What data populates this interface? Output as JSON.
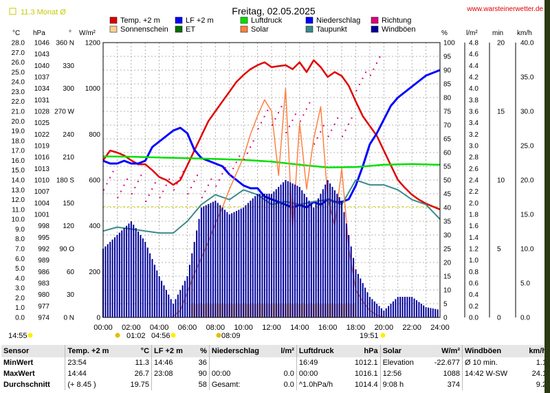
{
  "header": {
    "station": "11.3 Monat Ø",
    "date_title": "Freitag, 02.05.2025",
    "site": "www.warsteinerwetter.de"
  },
  "legend": [
    {
      "label": "Temp. +2 m",
      "color": "#e00000"
    },
    {
      "label": "LF +2 m",
      "color": "#0000ff"
    },
    {
      "label": "Luftdruck",
      "color": "#00e000"
    },
    {
      "label": "Niederschlag",
      "color": "#0000ff"
    },
    {
      "label": "Richtung",
      "color": "#e0007a"
    },
    {
      "label": "Sonnenschein",
      "color": "#f8d090"
    },
    {
      "label": "ET",
      "color": "#007000"
    },
    {
      "label": "Solar",
      "color": "#ff8040"
    },
    {
      "label": "Taupunkt",
      "color": "#3a8a8a"
    },
    {
      "label": "Windböen",
      "color": "#00009a"
    }
  ],
  "axes": {
    "left_units": [
      "°C",
      "hPa",
      "°",
      "W/m²"
    ],
    "right_units": [
      "%",
      "l/m²",
      "min",
      "km/h"
    ],
    "temp_ticks": [
      "28.0",
      "27.0",
      "26.0",
      "25.0",
      "24.0",
      "23.0",
      "22.0",
      "21.0",
      "20.0",
      "19.0",
      "18.0",
      "17.0",
      "16.0",
      "15.0",
      "14.0",
      "13.0",
      "12.0",
      "11.0",
      "10.0",
      "9.0",
      "8.0",
      "7.0",
      "6.0",
      "5.0",
      "4.0",
      "3.0",
      "2.0",
      "1.0",
      "0.0"
    ],
    "hpa_ticks": [
      "1046",
      "1043",
      "1040",
      "1037",
      "1034",
      "1031",
      "1028",
      "1025",
      "1022",
      "1019",
      "1016",
      "1013",
      "1010",
      "1007",
      "1004",
      "1001",
      "998",
      "995",
      "992",
      "989",
      "986",
      "983",
      "980",
      "977",
      "974"
    ],
    "dir_ticks": [
      "360 N",
      "330",
      "300",
      "270 W",
      "240",
      "210",
      "180 S",
      "150",
      "120",
      "90 O",
      "60",
      "30",
      "0 N"
    ],
    "solar_ticks": [
      "1200",
      "1000",
      "800",
      "600",
      "400",
      "200",
      "0"
    ],
    "pct_ticks": [
      "100",
      "95",
      "90",
      "85",
      "80",
      "75",
      "70",
      "65",
      "60",
      "55",
      "50",
      "45",
      "40",
      "35",
      "30",
      "25",
      "20",
      "15",
      "10",
      "5",
      "0"
    ],
    "rain_ticks": [
      "4.8",
      "4.6",
      "4.4",
      "4.2",
      "4.0",
      "3.8",
      "3.6",
      "3.4",
      "3.2",
      "3.0",
      "2.8",
      "2.6",
      "2.4",
      "2.2",
      "2.0",
      "1.8",
      "1.6",
      "1.4",
      "1.2",
      "1.0",
      "0.8",
      "0.6",
      "0.4",
      "0.2",
      "0.0"
    ],
    "min_ticks": [
      "20",
      "15",
      "10",
      "5",
      "0"
    ],
    "kmh_ticks": [
      "40.0",
      "35.0",
      "30.0",
      "25.0",
      "20.0",
      "15.0",
      "10.0",
      "5.0",
      "0.0"
    ],
    "x_ticks": [
      "00:00",
      "02:00",
      "04:00",
      "06:00",
      "08:00",
      "10:00",
      "12:00",
      "14:00",
      "16:00",
      "18:00",
      "20:00",
      "22:00",
      "24:00"
    ]
  },
  "markers": {
    "left_time": "14:55",
    "moonrise": "01:02",
    "sunrise": "04:56",
    "moonset": "08:09",
    "sunset": "19:51"
  },
  "chart_data": {
    "type": "line",
    "title": "Freitag, 02.05.2025",
    "x_unit": "hour",
    "x_range": [
      0,
      24
    ],
    "series": [
      {
        "name": "Temp. +2 m",
        "unit": "°C",
        "color": "#e00000",
        "x": [
          0,
          0.5,
          1,
          1.5,
          2,
          2.5,
          3,
          3.5,
          4,
          4.5,
          5,
          5.5,
          6,
          6.5,
          7,
          7.5,
          8,
          8.5,
          9,
          9.5,
          10,
          10.5,
          11,
          11.5,
          12,
          12.5,
          13,
          13.5,
          14,
          14.5,
          15,
          15.5,
          16,
          16.5,
          17,
          17.5,
          18,
          18.5,
          19,
          19.5,
          20,
          20.5,
          21,
          21.5,
          22,
          22.5,
          23,
          23.5,
          24
        ],
        "values": [
          16.0,
          17.0,
          16.8,
          16.5,
          16.0,
          15.6,
          15.6,
          15.0,
          14.3,
          14.0,
          13.5,
          14.0,
          15.5,
          17.0,
          18.5,
          20.0,
          21.0,
          22.0,
          23.0,
          24.0,
          24.7,
          25.3,
          25.7,
          26.0,
          25.5,
          25.6,
          25.7,
          25.3,
          26.0,
          25.0,
          26.2,
          25.5,
          24.5,
          25.0,
          24.6,
          23.6,
          22.0,
          20.5,
          19.5,
          18.5,
          17.0,
          15.5,
          14.0,
          13.2,
          12.5,
          12.0,
          11.6,
          11.3,
          11.0
        ]
      },
      {
        "name": "LF +2 m",
        "unit": "%",
        "color": "#0000ff",
        "x": [
          0,
          0.5,
          1,
          1.5,
          2,
          2.5,
          3,
          3.5,
          4,
          4.5,
          5,
          5.5,
          6,
          6.5,
          7,
          7.5,
          8,
          8.5,
          9,
          9.5,
          10,
          10.5,
          11,
          11.5,
          12,
          12.5,
          13,
          13.5,
          14,
          14.5,
          15,
          15.5,
          16,
          16.5,
          17,
          17.5,
          18,
          18.5,
          19,
          19.5,
          20,
          20.5,
          21,
          21.5,
          22,
          22.5,
          23,
          23.5,
          24
        ],
        "values": [
          57,
          56,
          56,
          57,
          56,
          56,
          57,
          62,
          64,
          66,
          68,
          69,
          67,
          61,
          58,
          57,
          56,
          55,
          52,
          50,
          48,
          47,
          47,
          44,
          43,
          42,
          41,
          40,
          41,
          40,
          42,
          41,
          43,
          42,
          42,
          43,
          48,
          55,
          63,
          67,
          72,
          77,
          80,
          82,
          84,
          86,
          88,
          89,
          90
        ]
      },
      {
        "name": "Luftdruck",
        "unit": "hPa",
        "color": "#00e000",
        "x": [
          0,
          2,
          4,
          6,
          8,
          10,
          12,
          14,
          16,
          18,
          20,
          22,
          24
        ],
        "values": [
          1016.2,
          1016.1,
          1015.9,
          1015.7,
          1015.5,
          1015.3,
          1014.8,
          1014.0,
          1013.3,
          1013.4,
          1014.0,
          1014.2,
          1014.0
        ]
      },
      {
        "name": "Taupunkt",
        "unit": "°C",
        "color": "#3a8a8a",
        "x": [
          0,
          1,
          2,
          3,
          4,
          5,
          6,
          7,
          8,
          9,
          10,
          11,
          12,
          13,
          14,
          15,
          16,
          17,
          18,
          19,
          20,
          21,
          22,
          23,
          24
        ],
        "values": [
          8.8,
          9.2,
          9.0,
          8.8,
          8.6,
          8.6,
          9.8,
          11.5,
          12.5,
          12.0,
          13.0,
          12.5,
          11.5,
          11.8,
          11.5,
          11.8,
          12.0,
          11.5,
          14.0,
          13.5,
          13.5,
          13.0,
          12.0,
          11.5,
          10.0
        ]
      },
      {
        "name": "Solar",
        "unit": "W/m²",
        "color": "#ff8040",
        "x": [
          4.9,
          5.5,
          6,
          6.5,
          7,
          7.5,
          8,
          8.5,
          9,
          9.5,
          10,
          10.5,
          11,
          11.5,
          12,
          12.5,
          13,
          13.5,
          14,
          14.5,
          15,
          15.5,
          16,
          16.5,
          17,
          17.5,
          18,
          18.5,
          19,
          19.5,
          20
        ],
        "values": [
          0,
          30,
          110,
          190,
          260,
          330,
          410,
          480,
          560,
          630,
          700,
          800,
          880,
          950,
          900,
          620,
          1000,
          380,
          850,
          560,
          780,
          920,
          520,
          400,
          650,
          300,
          120,
          70,
          30,
          10,
          0
        ]
      },
      {
        "name": "Windböen",
        "unit": "km/h",
        "color": "#00009a",
        "x": [
          0,
          1,
          2,
          3,
          4,
          5,
          6,
          7,
          8,
          9,
          10,
          11,
          12,
          13,
          14,
          15,
          16,
          17,
          18,
          19,
          20,
          21,
          22,
          23,
          24
        ],
        "values": [
          10.0,
          12.0,
          14.0,
          11.0,
          6.0,
          2.0,
          6.0,
          16.0,
          17.0,
          15.0,
          16.0,
          18.0,
          18.0,
          20.0,
          19.0,
          16.0,
          20.0,
          17.0,
          7.0,
          3.0,
          1.0,
          3.0,
          3.0,
          1.5,
          1.1
        ]
      },
      {
        "name": "Richtung",
        "unit": "°",
        "color": "#e0007a",
        "x": [
          0,
          1,
          2,
          3,
          4,
          5,
          6,
          7,
          8,
          9,
          10,
          11,
          12,
          13,
          14,
          15,
          16,
          17,
          18,
          19
        ],
        "values": [
          180,
          170,
          175,
          165,
          170,
          180,
          175,
          170,
          185,
          200,
          220,
          260,
          265,
          255,
          270,
          240,
          250,
          250,
          310,
          330
        ]
      }
    ],
    "ylim_temp": [
      0,
      28
    ],
    "ylim_pct": [
      0,
      100
    ],
    "ylim_hpa": [
      974,
      1046
    ],
    "ylim_solar": [
      0,
      1200
    ],
    "ylim_kmh": [
      0,
      40
    ],
    "grid": true,
    "legend_position": "top"
  },
  "stats": {
    "header": {
      "sensor": "Sensor",
      "temp": "Temp. +2 m",
      "temp_unit": "°C",
      "lf": "LF +2 m",
      "lf_unit": "%",
      "rain": "Niederschlag",
      "rain_unit": "l/m²",
      "press": "Luftdruck",
      "press_unit": "hPa",
      "solar": "Solar",
      "solar_unit": "W/m²",
      "wind": "Windböen",
      "wind_unit": "km/h"
    },
    "rows": [
      {
        "label": "MinWert",
        "temp_time": "23:54",
        "temp": "11.3",
        "lf_time": "14:46",
        "lf": "36",
        "rain_a": "",
        "rain": "",
        "press_time": "16:49",
        "press": "1012.1",
        "solar_a": "Elevation",
        "solar": "-22.677",
        "wind_a": "Ø 10 min.",
        "wind": "1.1"
      },
      {
        "label": "MaxWert",
        "temp_time": "14:44",
        "temp": "26.7",
        "lf_time": "23:08",
        "lf": "90",
        "rain_a": "00:00",
        "rain": "0.0",
        "press_time": "00:00",
        "press": "1016.1",
        "solar_a": "12:56",
        "solar": "1088",
        "wind_a": "14:42   W-SW",
        "wind": "24.1"
      },
      {
        "label": "Durchschnitt",
        "temp_time": "(+ 8.45 )",
        "temp": "19.75",
        "lf_time": "",
        "lf": "58",
        "rain_a": "Gesamt:",
        "rain": "0.0",
        "press_time": "^1.0hPa/h",
        "press": "1014.4",
        "solar_a": "9:08 h",
        "solar": "374",
        "wind_a": "",
        "wind": "9.2"
      }
    ]
  }
}
